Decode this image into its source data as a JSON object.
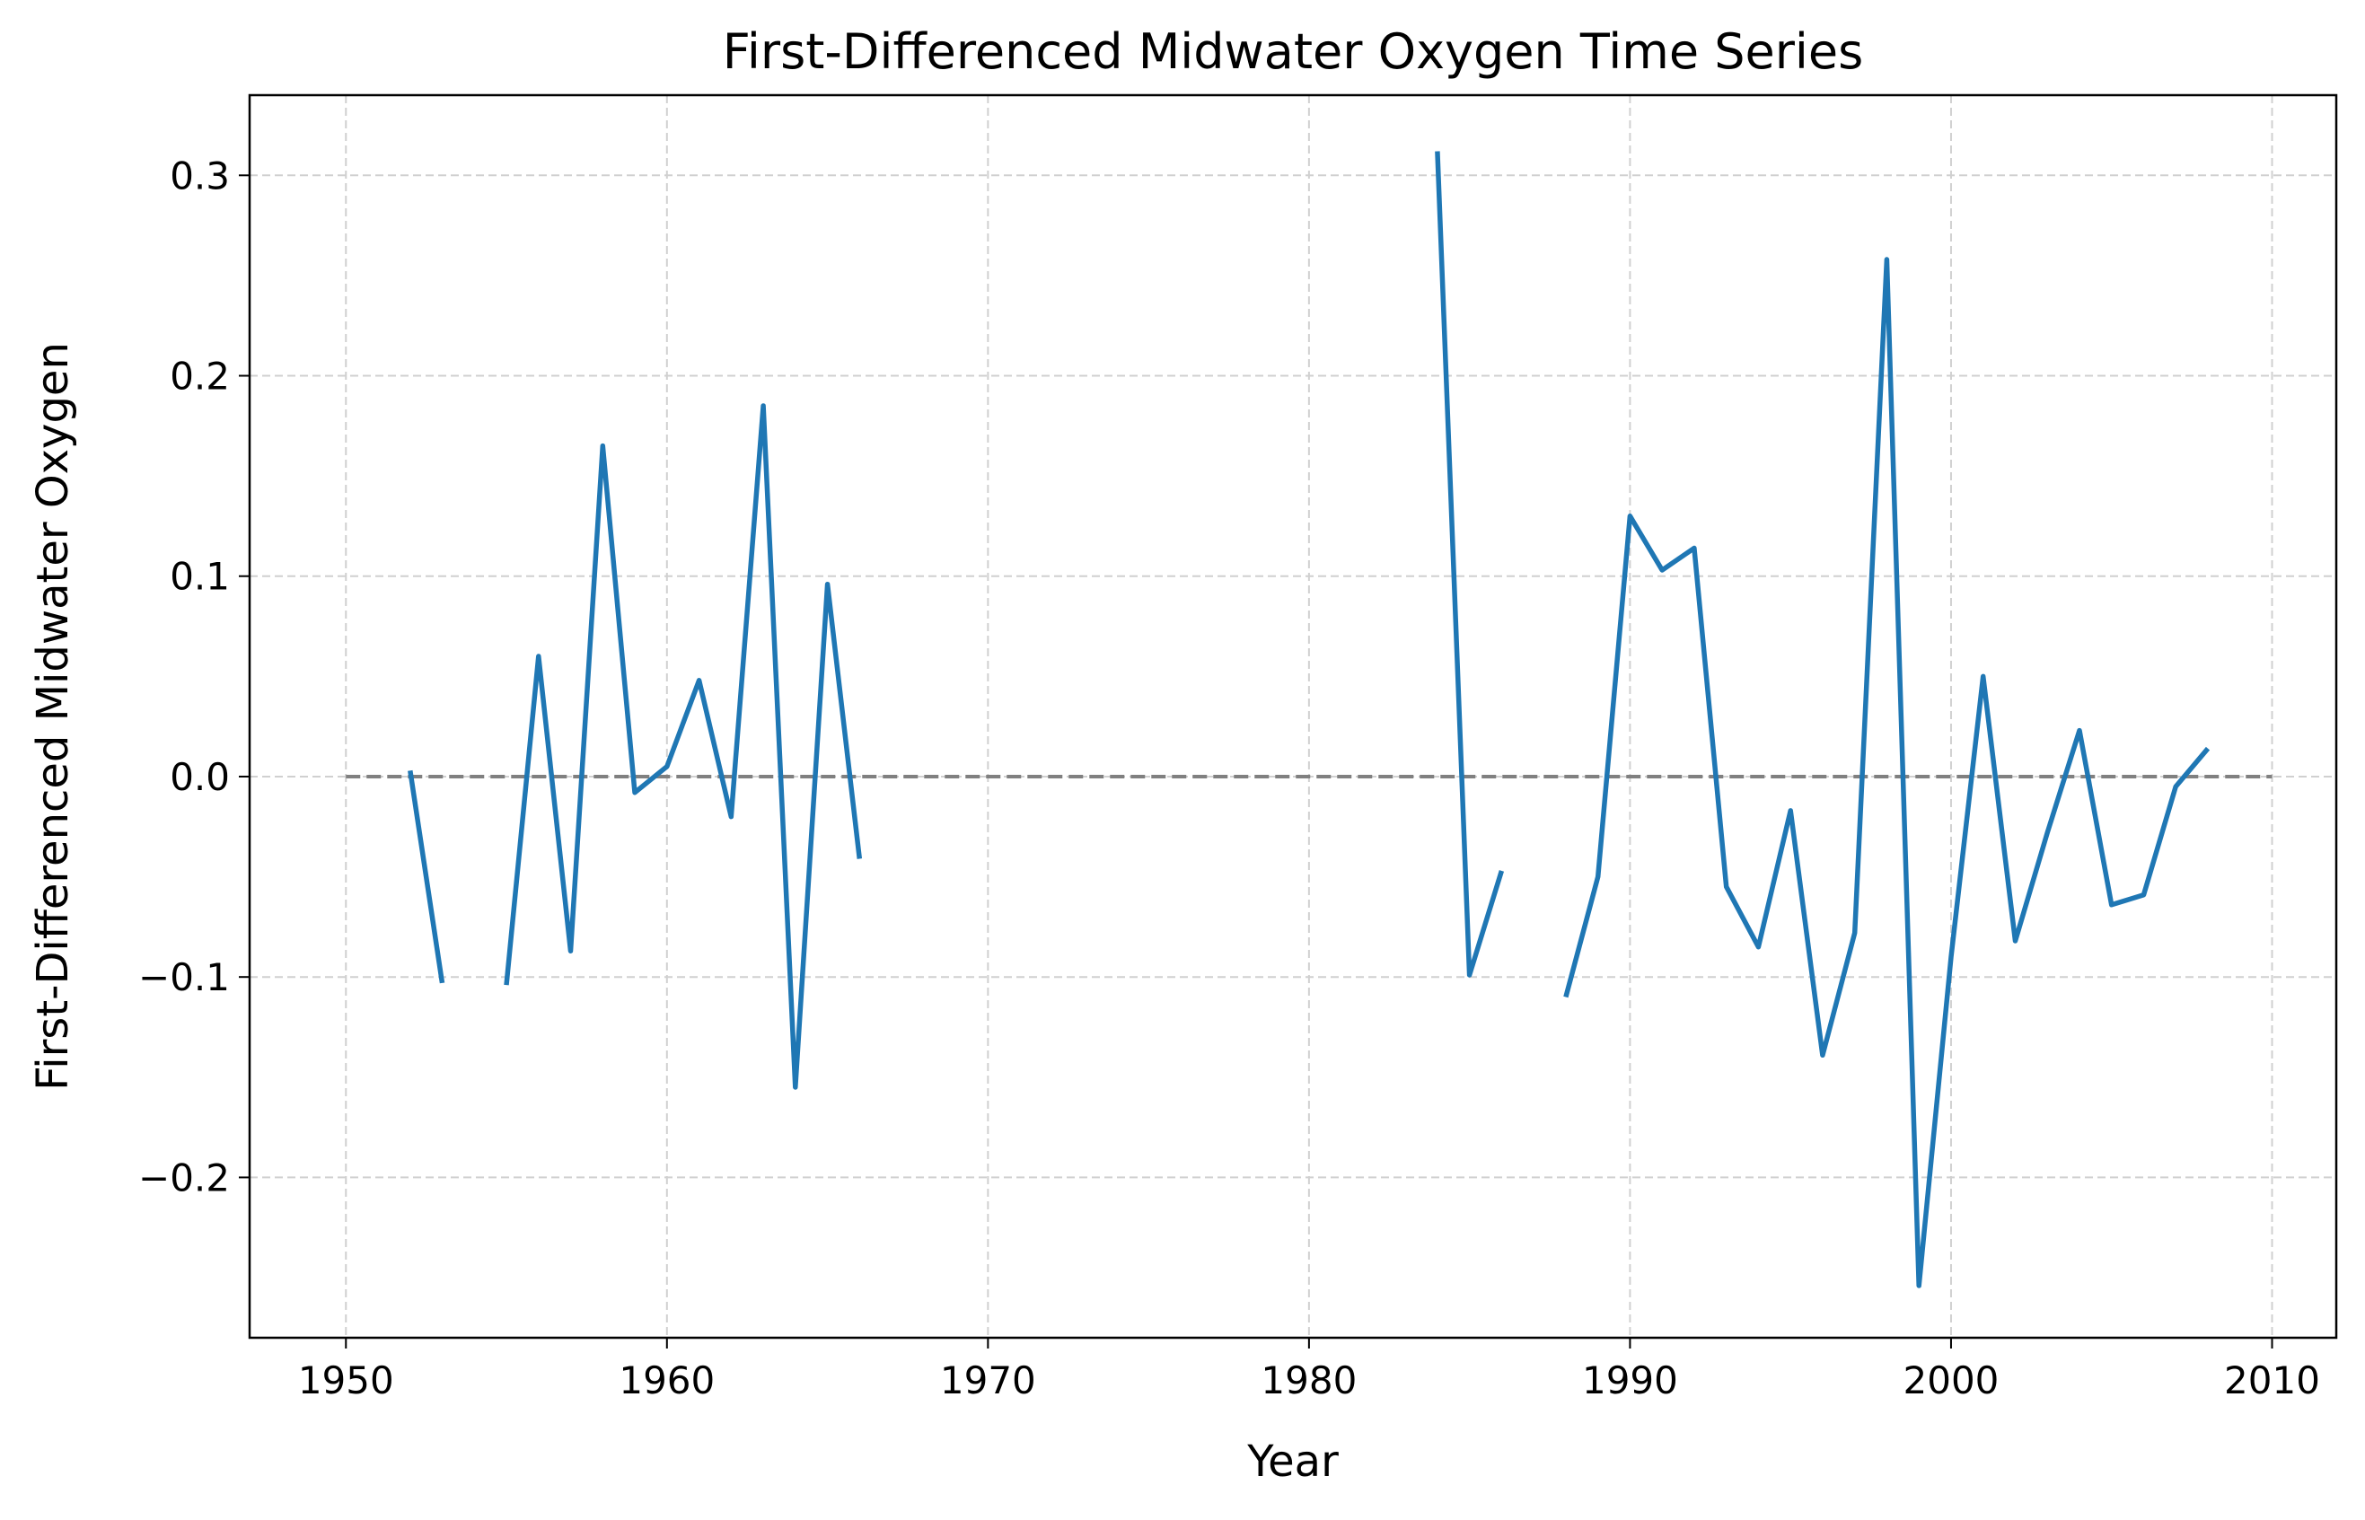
{
  "chart_data": {
    "type": "line",
    "title": "First-Differenced Midwater Oxygen Time Series",
    "xlabel": "Year",
    "ylabel": "First-Differenced Midwater Oxygen",
    "xlim": [
      1947,
      2012
    ],
    "ylim": [
      -0.28,
      0.34
    ],
    "xticks": [
      1950,
      1960,
      1970,
      1980,
      1990,
      2000,
      2010
    ],
    "yticks": [
      -0.2,
      -0.1,
      0.0,
      0.1,
      0.2,
      0.3
    ],
    "xtick_labels": [
      "1950",
      "1960",
      "1970",
      "1980",
      "1990",
      "2000",
      "2010"
    ],
    "ytick_labels": [
      "−0.2",
      "−0.1",
      "0.0",
      "0.1",
      "0.2",
      "0.3"
    ],
    "grid": true,
    "zero_line": {
      "y": 0.0,
      "x_range": [
        1950,
        2010
      ],
      "color": "#808080",
      "style": "dashed"
    },
    "series": [
      {
        "color": "#1f77b4",
        "x": [
          1952,
          1953,
          1954,
          1955,
          1956,
          1957,
          1958,
          1959,
          1960,
          1961,
          1962,
          1963,
          1964,
          1965,
          1966,
          1967,
          1968,
          1969,
          1970,
          1971,
          1972,
          1973,
          1974,
          1975,
          1976,
          1977,
          1978,
          1979,
          1980,
          1981,
          1982,
          1983,
          1984,
          1985,
          1986,
          1987,
          1988,
          1989,
          1990,
          1991,
          1992,
          1993,
          1994,
          1995,
          1996,
          1997,
          1998,
          1999,
          2000,
          2001,
          2002,
          2003,
          2004,
          2005,
          2006,
          2007,
          2008
        ],
        "y": [
          0.003,
          -0.103,
          null,
          -0.104,
          0.06,
          -0.087,
          0.165,
          -0.008,
          0.005,
          0.048,
          -0.02,
          0.185,
          -0.155,
          0.096,
          -0.041,
          null,
          null,
          null,
          null,
          null,
          null,
          null,
          null,
          null,
          null,
          null,
          null,
          null,
          null,
          null,
          null,
          null,
          0.312,
          -0.099,
          -0.047,
          null,
          -0.11,
          -0.05,
          0.13,
          0.103,
          0.114,
          -0.055,
          -0.085,
          -0.017,
          -0.139,
          -0.078,
          0.258,
          -0.254,
          -0.09,
          0.05,
          -0.082,
          -0.028,
          0.023,
          -0.064,
          -0.059,
          -0.005,
          0.014
        ]
      }
    ]
  }
}
